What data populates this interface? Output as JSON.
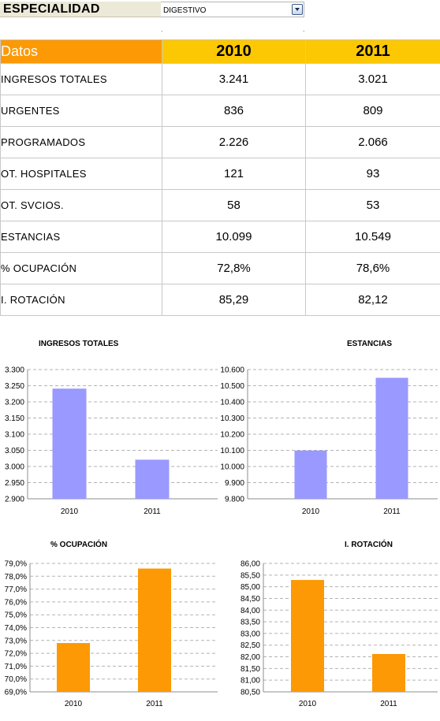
{
  "selector": {
    "label": "ESPECIALIDAD",
    "value": "DIGESTIVO"
  },
  "table": {
    "header": {
      "label": "Datos",
      "years": [
        "2010",
        "2011"
      ]
    },
    "rows": [
      {
        "label": "INGRESOS TOTALES",
        "values": [
          "3.241",
          "3.021"
        ]
      },
      {
        "label": "URGENTES",
        "values": [
          "836",
          "809"
        ]
      },
      {
        "label": "PROGRAMADOS",
        "values": [
          "2.226",
          "2.066"
        ]
      },
      {
        "label": "OT. HOSPITALES",
        "values": [
          "121",
          "93"
        ]
      },
      {
        "label": "OT. SVCIOS.",
        "values": [
          "58",
          "53"
        ]
      },
      {
        "label": "ESTANCIAS",
        "values": [
          "10.099",
          "10.549"
        ]
      },
      {
        "label": "% OCUPACIÓN",
        "values": [
          "72,8%",
          "78,6%"
        ]
      },
      {
        "label": "I. ROTACIÓN",
        "values": [
          "85,29",
          "82,12"
        ]
      }
    ]
  },
  "colors": {
    "header_label_bg": "#fc9904",
    "header_year_bg": "#fcc804",
    "bar_purple": "#9999ff",
    "bar_orange": "#fc9904",
    "gridline": "#b3b3b3"
  },
  "chart_data": [
    {
      "type": "bar",
      "title": "INGRESOS TOTALES",
      "categories": [
        "2010",
        "2011"
      ],
      "values": [
        3241,
        3021
      ],
      "ylim": [
        2900,
        3300
      ],
      "yticks": [
        "2.900",
        "2.950",
        "3.000",
        "3.050",
        "3.100",
        "3.150",
        "3.200",
        "3.250",
        "3.300"
      ],
      "grid": true,
      "color": "#9999ff"
    },
    {
      "type": "bar",
      "title": "ESTANCIAS",
      "categories": [
        "2010",
        "2011"
      ],
      "values": [
        10099,
        10549
      ],
      "ylim": [
        9800,
        10600
      ],
      "yticks": [
        "9.800",
        "9.900",
        "10.000",
        "10.100",
        "10.200",
        "10.300",
        "10.400",
        "10.500",
        "10.600"
      ],
      "grid": true,
      "color": "#9999ff"
    },
    {
      "type": "bar",
      "title": "% OCUPACIÓN",
      "categories": [
        "2010",
        "2011"
      ],
      "values": [
        72.8,
        78.6
      ],
      "ylim": [
        69.0,
        79.0
      ],
      "yticks": [
        "69,0%",
        "70,0%",
        "71,0%",
        "72,0%",
        "73,0%",
        "74,0%",
        "75,0%",
        "76,0%",
        "77,0%",
        "78,0%",
        "79,0%"
      ],
      "grid": true,
      "color": "#fc9904"
    },
    {
      "type": "bar",
      "title": "I. ROTACIÓN",
      "categories": [
        "2010",
        "2011"
      ],
      "values": [
        85.29,
        82.12
      ],
      "ylim": [
        80.5,
        86.0
      ],
      "yticks": [
        "80,50",
        "81,00",
        "81,50",
        "82,00",
        "82,50",
        "83,00",
        "83,50",
        "84,00",
        "84,50",
        "85,00",
        "85,50",
        "86,00"
      ],
      "grid": true,
      "color": "#fc9904"
    }
  ]
}
